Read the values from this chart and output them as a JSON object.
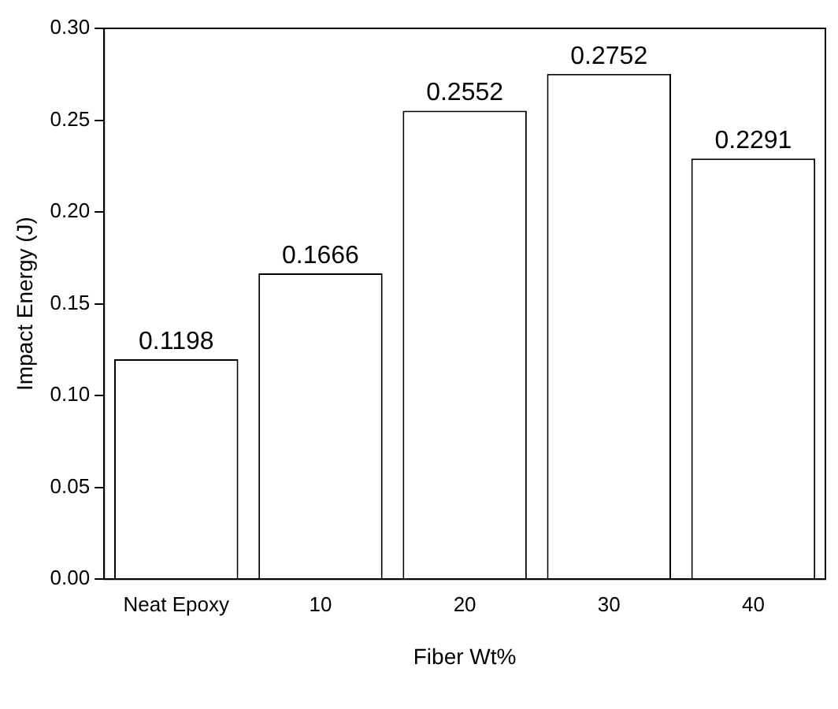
{
  "chart_data": {
    "type": "bar",
    "xlabel": "Fiber Wt%",
    "ylabel": "Impact Energy (J)",
    "categories": [
      "Neat Epoxy",
      "10",
      "20",
      "30",
      "40"
    ],
    "values": [
      0.1198,
      0.1666,
      0.2552,
      0.2752,
      0.2291
    ],
    "color": "#ffffff",
    "ylim": [
      0,
      0.3
    ],
    "yticks": [
      {
        "value": 0,
        "label": "0.00"
      },
      {
        "value": 0.05,
        "label": "0.05"
      },
      {
        "value": 0.1,
        "label": "0.10"
      },
      {
        "value": 0.15,
        "label": "0.15"
      },
      {
        "value": 0.2,
        "label": "0.20"
      },
      {
        "value": 0.25,
        "label": "0.25"
      },
      {
        "value": 0.3,
        "label": "0.30"
      }
    ],
    "data_labels": true,
    "grid": false,
    "legend": false
  }
}
